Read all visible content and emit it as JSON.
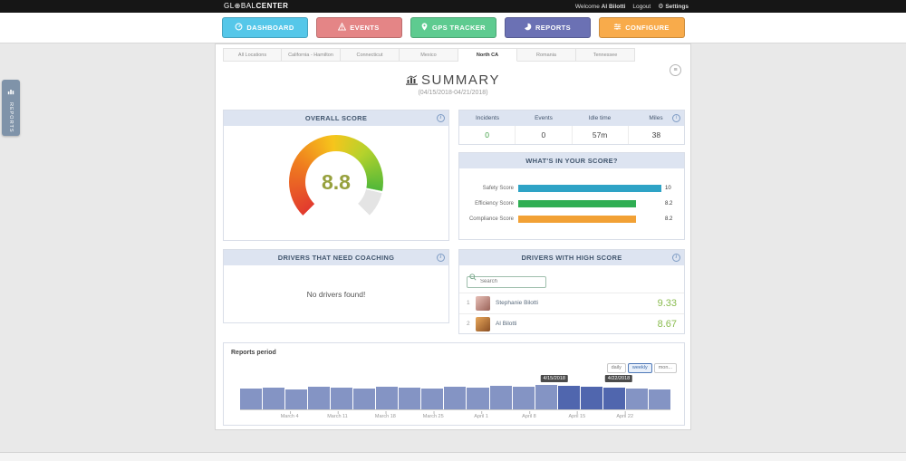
{
  "icons": {
    "globe": "⊕",
    "gear": "⚙",
    "menu": "≡"
  },
  "topbar": {
    "logo": {
      "part1": "GL",
      "part2": "BAL",
      "part3": "CENTER"
    },
    "welcome_label": "Welcome",
    "user_name": "Al Bilotti",
    "logout_label": "Logout",
    "settings_label": "Settings"
  },
  "nav": {
    "buttons": [
      {
        "label": "DASHBOARD",
        "color": "#55c7e9"
      },
      {
        "label": "EVENTS",
        "color": "#e48586"
      },
      {
        "label": "GPS TRACKER",
        "color": "#5ecb90"
      },
      {
        "label": "REPORTS",
        "color": "#6b71b4"
      },
      {
        "label": "CONFIGURE",
        "color": "#f8ab4b"
      }
    ]
  },
  "side_tab": {
    "label": "REPORTS"
  },
  "tabs": [
    "All Locations",
    "California - Hamilton",
    "Connecticut",
    "Mexico",
    "North CA",
    "Romania",
    "Tennessee"
  ],
  "active_tab": "North CA",
  "page": {
    "title": "SUMMARY",
    "subtitle": "(04/15/2018-04/21/2018)"
  },
  "overall_score": {
    "header": "OVERALL SCORE",
    "value": "8.8",
    "value_color": "#97a13e"
  },
  "stats": {
    "columns": [
      "Incidents",
      "Events",
      "Idle time",
      "Miles"
    ],
    "values": [
      "0",
      "0",
      "57m",
      "38"
    ],
    "value_colors": [
      "#43a047",
      "#444444",
      "#444444",
      "#444444"
    ]
  },
  "score_breakdown": {
    "header": "WHAT'S IN YOUR SCORE?"
  },
  "coaching": {
    "header": "DRIVERS THAT NEED COACHING",
    "empty_message": "No drivers found!"
  },
  "high_score": {
    "header": "DRIVERS WITH HIGH SCORE",
    "search_placeholder": "Search",
    "score_color": "#8abc4f",
    "drivers": [
      {
        "rank": "1",
        "name": "Stephanie Bilotti",
        "score": "9.33"
      },
      {
        "rank": "2",
        "name": "Al Bilotti",
        "score": "8.67"
      }
    ]
  },
  "reports_period": {
    "label": "Reports period",
    "buttons": [
      "daily",
      "weekly",
      "mon..."
    ],
    "active_button": "weekly"
  },
  "chart_data": [
    {
      "type": "gauge",
      "title": "OVERALL SCORE",
      "value": 8.8,
      "min": 0,
      "max": 10,
      "colors": [
        "#e23a2e",
        "#ef7d1f",
        "#f6c51c",
        "#b5d22c",
        "#52b839"
      ],
      "track_color": "#e4e4e4"
    },
    {
      "type": "bar",
      "title": "WHAT'S IN YOUR SCORE?",
      "orientation": "horizontal",
      "categories": [
        "Safety Score",
        "Efficiency Score",
        "Compliance Score"
      ],
      "values": [
        10,
        8.2,
        8.2
      ],
      "value_labels": [
        "10",
        "8.2",
        "8.2"
      ],
      "colors": [
        "#2ea3c6",
        "#2fae53",
        "#f2a135"
      ],
      "xlim": [
        0,
        10
      ]
    },
    {
      "type": "area",
      "title": "Reports period",
      "x_labels": [
        "March 4",
        "March 11",
        "March 18",
        "March 25",
        "April 1",
        "April 8",
        "April 15",
        "April 22"
      ],
      "values": [
        24,
        25,
        23,
        26,
        25,
        24,
        26,
        25,
        24,
        26,
        25,
        27,
        26,
        28,
        27,
        26,
        25,
        24,
        23
      ],
      "ymax": 30,
      "bar_color": "#8494c4",
      "selected_color": "#5066ae",
      "selected_indices": [
        14,
        15,
        16
      ],
      "selection_labels": [
        "4/15/2018",
        "4/22/2018"
      ]
    }
  ]
}
